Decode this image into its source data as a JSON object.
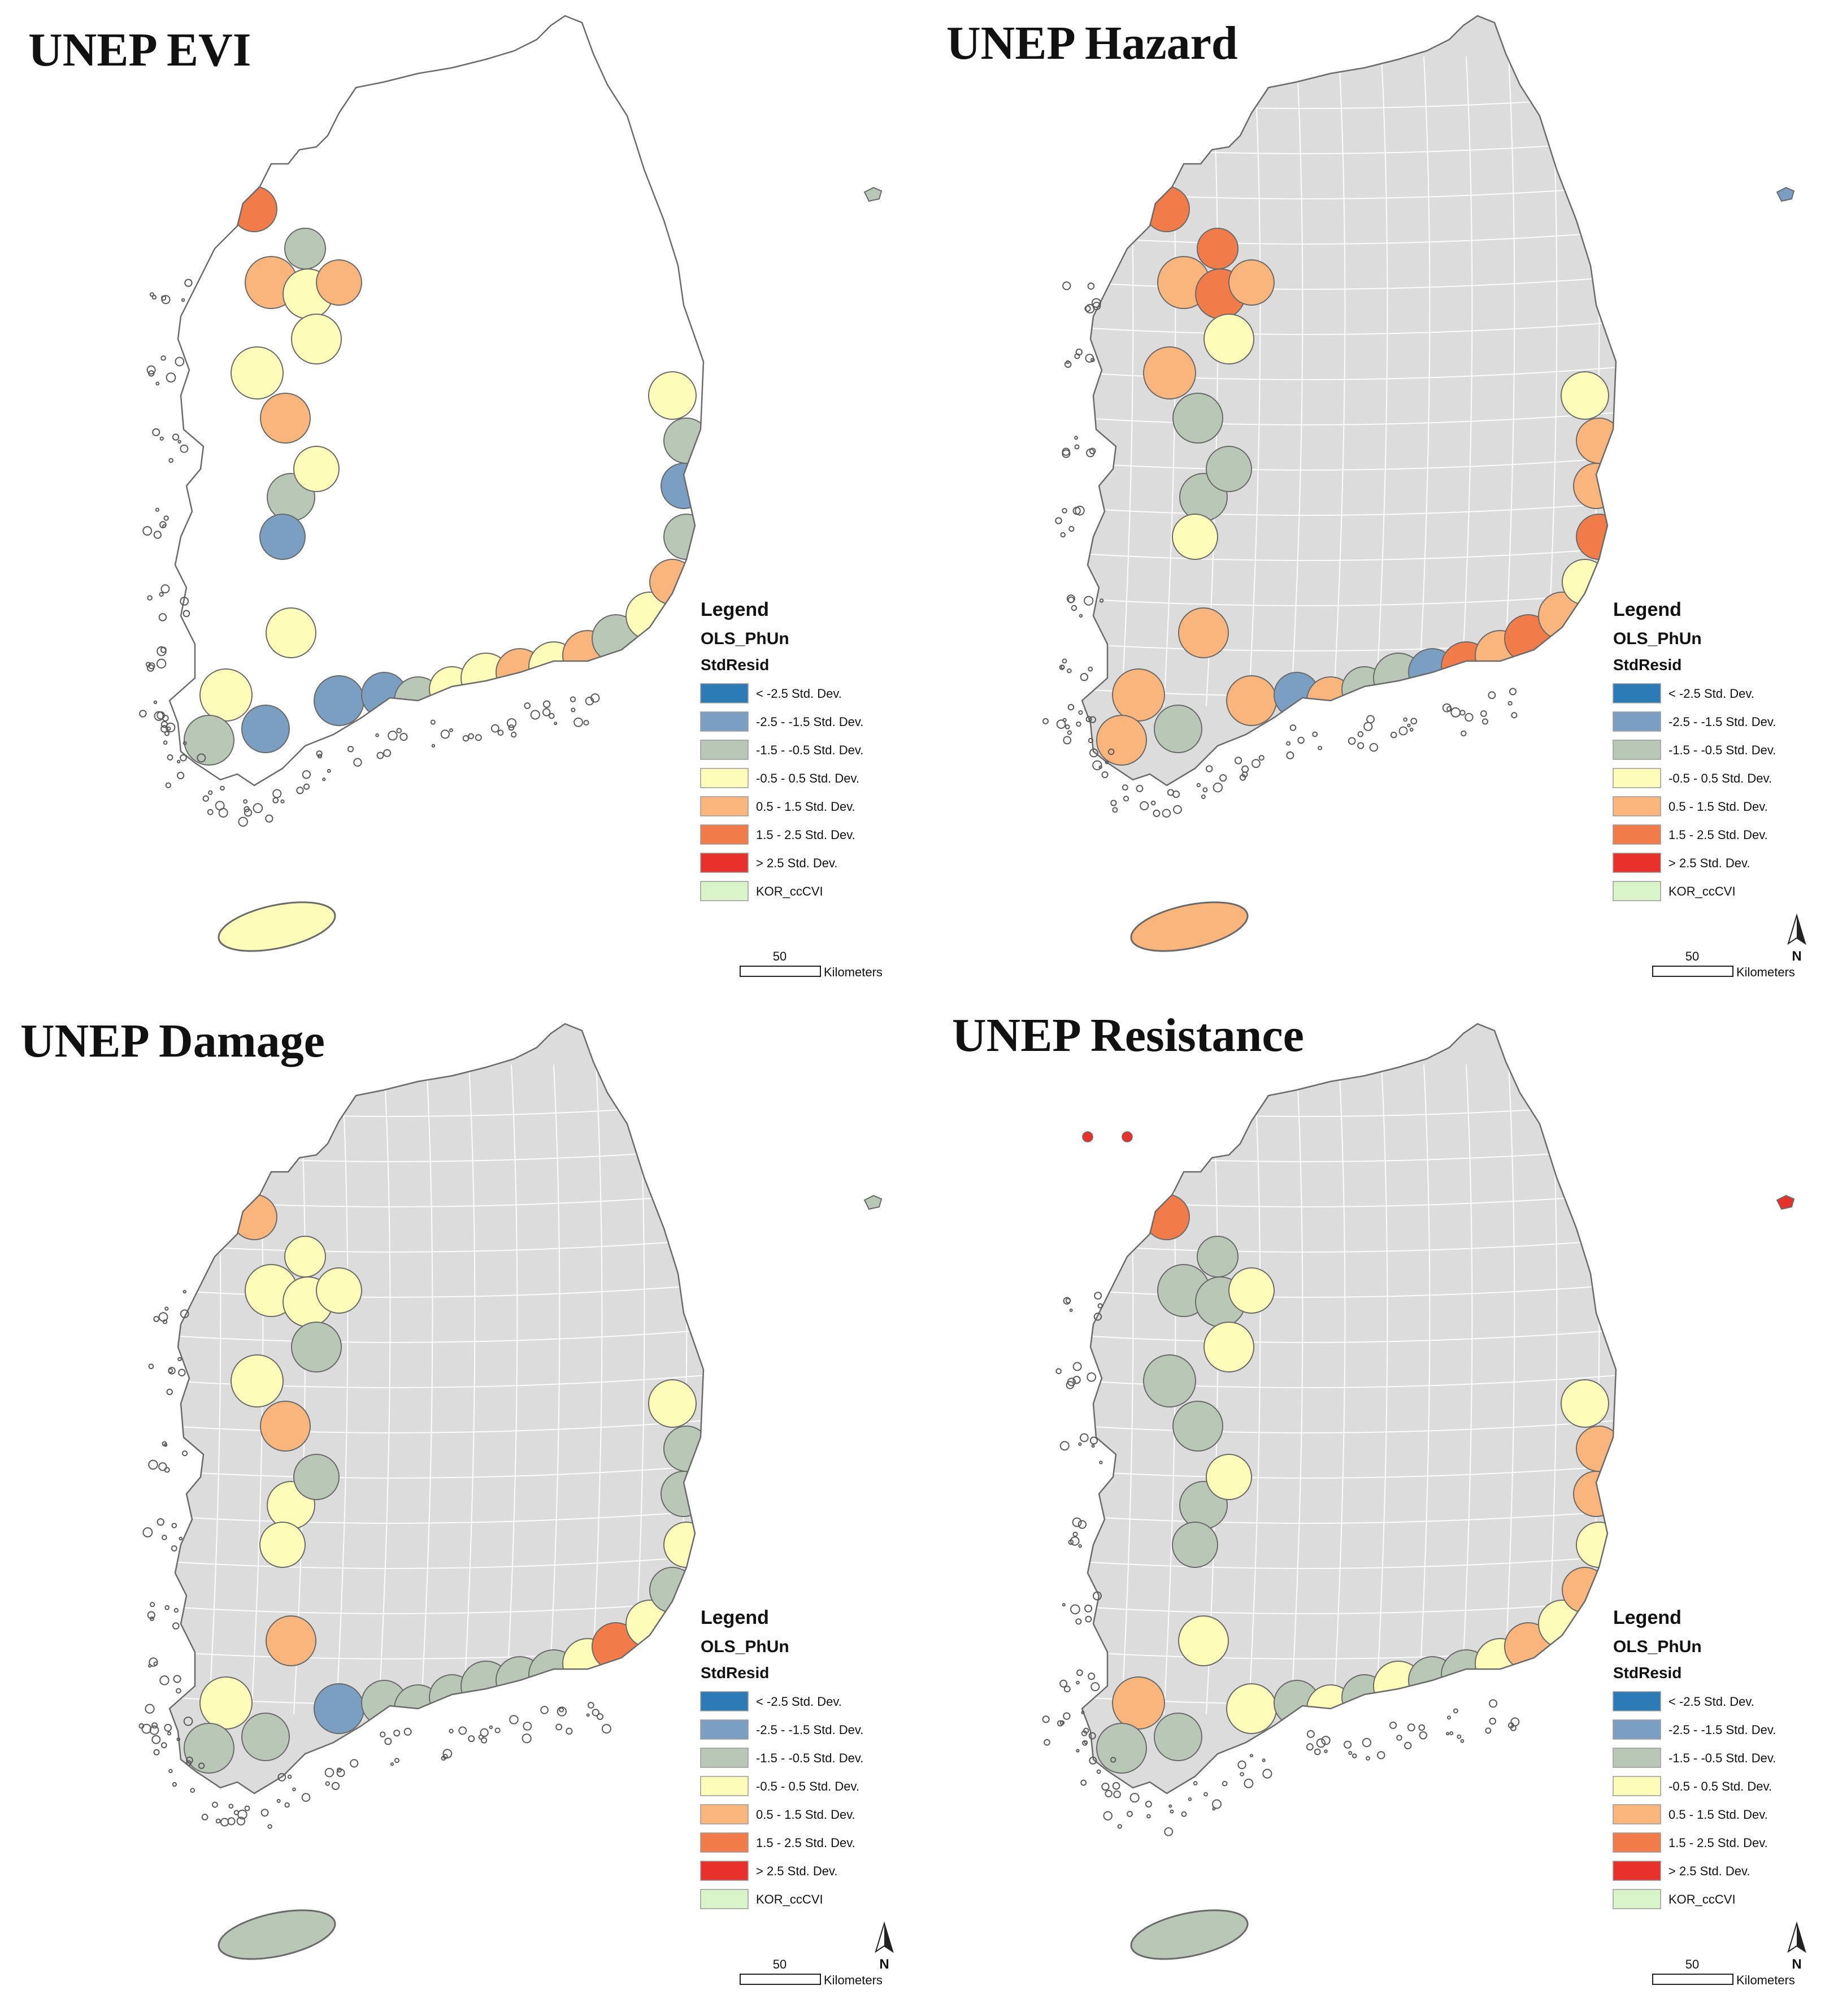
{
  "legend": {
    "heading": "Legend",
    "layer": "OLS_PhUn",
    "field": "StdResid",
    "classes": [
      {
        "label": "< -2.5 Std. Dev.",
        "color": "#2c7bb6"
      },
      {
        "label": "-2.5 - -1.5 Std. Dev.",
        "color": "#7b9fc2"
      },
      {
        "label": "-1.5 - -0.5 Std. Dev.",
        "color": "#b9c8b6"
      },
      {
        "label": "-0.5 - 0.5 Std. Dev.",
        "color": "#fdfcb9"
      },
      {
        "label": "0.5 - 1.5 Std. Dev.",
        "color": "#f9b57c"
      },
      {
        "label": "1.5 - 2.5 Std. Dev.",
        "color": "#f17c4a"
      },
      {
        "label": "> 2.5 Std. Dev.",
        "color": "#e8312a"
      },
      {
        "label": "KOR_ccCVI",
        "color": "#d9f4c8"
      }
    ]
  },
  "scale": {
    "value": "50",
    "unit": "Kilometers"
  },
  "north_label": "N",
  "colors": {
    "inland": "#dcdcdc",
    "outline": "#6a6a6a",
    "island": "#5a5a5a"
  },
  "panels": [
    {
      "title": "UNEP EVI",
      "inland_shown": false,
      "north_arrow": false,
      "jeju": "#fdfcb9",
      "ulleung": "#b9c8b6",
      "small_isles": [],
      "zones": [
        "#b9c8b6",
        "#fdfcb9",
        "#f17c4a",
        "#f9b57c",
        "#fdfcb9",
        "#f9b57c",
        "#fdfcb9",
        "#b9c8b6",
        "#f9b57c",
        "#fdfcb9",
        "#b9c8b6",
        "#fdfcb9",
        "#7b9fc2",
        "#fdfcb9",
        "#fdfcb9",
        "#b9c8b6",
        "#7b9fc2",
        "#7b9fc2",
        "#7b9fc2",
        "#b9c8b6",
        "#fdfcb9",
        "#fdfcb9",
        "#f9b57c",
        "#fdfcb9",
        "#f9b57c",
        "#b9c8b6",
        "#fdfcb9",
        "#f9b57c",
        "#b9c8b6",
        "#7b9fc2",
        "#b9c8b6",
        "#fdfcb9"
      ]
    },
    {
      "title": "UNEP Hazard",
      "inland_shown": true,
      "north_arrow": true,
      "jeju": "#f9b57c",
      "ulleung": "#7b9fc2",
      "small_isles": [],
      "zones": [
        "#f9b57c",
        "#f9b57c",
        "#f17c4a",
        "#f9b57c",
        "#f17c4a",
        "#f9b57c",
        "#fdfcb9",
        "#f17c4a",
        "#b9c8b6",
        "#f9b57c",
        "#b9c8b6",
        "#b9c8b6",
        "#fdfcb9",
        "#f9b57c",
        "#f9b57c",
        "#f9b57c",
        "#b9c8b6",
        "#f9b57c",
        "#7b9fc2",
        "#f9b57c",
        "#b9c8b6",
        "#b9c8b6",
        "#7b9fc2",
        "#f17c4a",
        "#f9b57c",
        "#f17c4a",
        "#f9b57c",
        "#fdfcb9",
        "#f17c4a",
        "#f9b57c",
        "#f9b57c",
        "#fdfcb9"
      ]
    },
    {
      "title": "UNEP Damage",
      "inland_shown": true,
      "north_arrow": true,
      "jeju": "#b9c8b6",
      "ulleung": "#b9c8b6",
      "small_isles": [],
      "zones": [
        "#b9c8b6",
        "#fdfcb9",
        "#f9b57c",
        "#fdfcb9",
        "#fdfcb9",
        "#fdfcb9",
        "#b9c8b6",
        "#fdfcb9",
        "#f9b57c",
        "#fdfcb9",
        "#fdfcb9",
        "#b9c8b6",
        "#fdfcb9",
        "#f9b57c",
        "#fdfcb9",
        "#b9c8b6",
        "#b9c8b6",
        "#7b9fc2",
        "#b9c8b6",
        "#b9c8b6",
        "#b9c8b6",
        "#b9c8b6",
        "#b9c8b6",
        "#b9c8b6",
        "#fdfcb9",
        "#f17c4a",
        "#fdfcb9",
        "#b9c8b6",
        "#fdfcb9",
        "#b9c8b6",
        "#b9c8b6",
        "#fdfcb9"
      ]
    },
    {
      "title": "UNEP Resistance",
      "inland_shown": true,
      "north_arrow": true,
      "jeju": "#b9c8b6",
      "ulleung": "#e8312a",
      "small_isles": [
        "#e8312a",
        "#e8312a"
      ],
      "zones": [
        "#b9c8b6",
        "#fdfcb9",
        "#f17c4a",
        "#b9c8b6",
        "#b9c8b6",
        "#fdfcb9",
        "#fdfcb9",
        "#b9c8b6",
        "#b9c8b6",
        "#b9c8b6",
        "#b9c8b6",
        "#fdfcb9",
        "#b9c8b6",
        "#fdfcb9",
        "#f9b57c",
        "#b9c8b6",
        "#b9c8b6",
        "#fdfcb9",
        "#b9c8b6",
        "#fdfcb9",
        "#b9c8b6",
        "#fdfcb9",
        "#b9c8b6",
        "#b9c8b6",
        "#fdfcb9",
        "#f9b57c",
        "#fdfcb9",
        "#f9b57c",
        "#fdfcb9",
        "#f9b57c",
        "#f9b57c",
        "#fdfcb9"
      ]
    }
  ]
}
